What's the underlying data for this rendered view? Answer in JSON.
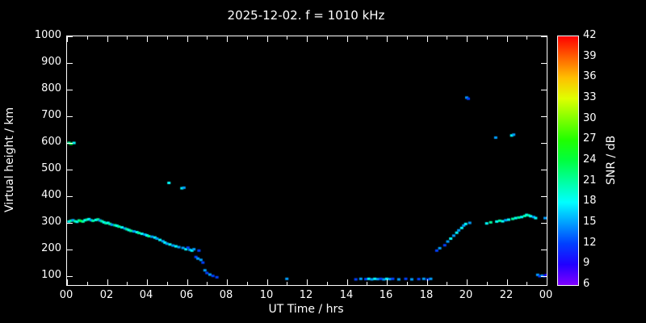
{
  "title": "2025-12-02. f = 1010 kHz",
  "chart_data": {
    "type": "scatter",
    "title": "2025-12-02. f = 1010 kHz",
    "xlabel": "UT Time / hrs",
    "ylabel": "Virtual height / km",
    "xlim": [
      0,
      24
    ],
    "ylim": [
      66.7,
      1000
    ],
    "grid": false,
    "background_color": "#000000",
    "axis_color": "#ffffff",
    "x_ticks": {
      "values": [
        0,
        2,
        4,
        6,
        8,
        10,
        12,
        14,
        16,
        18,
        20,
        22,
        24
      ],
      "labels": [
        "00",
        "02",
        "04",
        "06",
        "08",
        "10",
        "12",
        "14",
        "16",
        "18",
        "20",
        "22",
        "00"
      ]
    },
    "y_ticks": [
      100,
      200,
      300,
      400,
      500,
      600,
      700,
      800,
      900,
      1000
    ],
    "colorbar": {
      "label": "SNR / dB",
      "min": 6,
      "max": 42,
      "ticks": [
        42,
        39,
        36,
        33,
        30,
        27,
        24,
        21,
        18,
        15,
        12,
        9,
        6
      ],
      "scale": "rainbow: violet at 6 dB through blue, cyan, green, yellow, orange to red at 42 dB",
      "color_min": "#8000ff",
      "color_mid": "#00ffff",
      "color_max": "#ff0000"
    },
    "points_format": "[UT_hours, virtual_height_km, SNR_dB]",
    "points": [
      [
        0.1,
        600,
        21
      ],
      [
        0.2,
        597,
        24
      ],
      [
        0.35,
        600,
        18
      ],
      [
        0.1,
        305,
        18
      ],
      [
        0.2,
        308,
        21
      ],
      [
        0.3,
        310,
        15
      ],
      [
        0.4,
        306,
        21
      ],
      [
        0.5,
        304,
        18
      ],
      [
        0.6,
        309,
        21
      ],
      [
        0.7,
        307,
        24
      ],
      [
        0.8,
        305,
        21
      ],
      [
        0.9,
        310,
        18
      ],
      [
        1.0,
        312,
        21
      ],
      [
        1.1,
        314,
        18
      ],
      [
        1.2,
        310,
        15
      ],
      [
        1.3,
        308,
        21
      ],
      [
        1.45,
        311,
        18
      ],
      [
        1.55,
        313,
        21
      ],
      [
        1.65,
        309,
        15
      ],
      [
        1.75,
        306,
        21
      ],
      [
        1.85,
        302,
        18
      ],
      [
        1.95,
        299,
        21
      ],
      [
        2.05,
        300,
        18
      ],
      [
        2.15,
        296,
        21
      ],
      [
        2.25,
        293,
        15
      ],
      [
        2.4,
        291,
        21
      ],
      [
        2.5,
        289,
        18
      ],
      [
        2.6,
        286,
        21
      ],
      [
        2.75,
        283,
        18
      ],
      [
        2.9,
        279,
        15
      ],
      [
        3.0,
        276,
        21
      ],
      [
        3.1,
        273,
        18
      ],
      [
        3.2,
        270,
        21
      ],
      [
        3.35,
        268,
        15
      ],
      [
        3.5,
        265,
        18
      ],
      [
        3.6,
        262,
        21
      ],
      [
        3.75,
        259,
        18
      ],
      [
        3.9,
        256,
        15
      ],
      [
        4.0,
        253,
        18
      ],
      [
        4.1,
        250,
        21
      ],
      [
        4.25,
        248,
        15
      ],
      [
        4.4,
        245,
        18
      ],
      [
        4.5,
        241,
        15
      ],
      [
        4.65,
        236,
        18
      ],
      [
        4.8,
        231,
        15
      ],
      [
        4.9,
        226,
        18
      ],
      [
        5.0,
        222,
        15
      ],
      [
        5.1,
        450,
        18
      ],
      [
        5.15,
        219,
        18
      ],
      [
        5.3,
        215,
        15
      ],
      [
        5.45,
        212,
        18
      ],
      [
        5.6,
        209,
        15
      ],
      [
        5.75,
        430,
        18
      ],
      [
        5.85,
        432,
        15
      ],
      [
        5.8,
        206,
        15
      ],
      [
        5.95,
        201,
        18
      ],
      [
        6.05,
        207,
        12
      ],
      [
        6.15,
        199,
        15
      ],
      [
        6.25,
        196,
        18
      ],
      [
        6.35,
        201,
        15
      ],
      [
        6.45,
        172,
        12
      ],
      [
        6.55,
        166,
        15
      ],
      [
        6.6,
        196,
        12
      ],
      [
        6.7,
        161,
        15
      ],
      [
        6.8,
        151,
        12
      ],
      [
        6.9,
        122,
        15
      ],
      [
        7.0,
        112,
        12
      ],
      [
        7.15,
        106,
        15
      ],
      [
        7.3,
        101,
        12
      ],
      [
        7.5,
        96,
        12
      ],
      [
        11.0,
        90,
        15
      ],
      [
        14.45,
        88,
        12
      ],
      [
        14.7,
        90,
        15
      ],
      [
        14.95,
        89,
        12
      ],
      [
        15.1,
        90,
        18
      ],
      [
        15.25,
        88,
        15
      ],
      [
        15.4,
        90,
        18
      ],
      [
        15.55,
        89,
        15
      ],
      [
        15.7,
        90,
        12
      ],
      [
        15.85,
        88,
        15
      ],
      [
        16.0,
        90,
        18
      ],
      [
        16.15,
        89,
        15
      ],
      [
        16.3,
        90,
        12
      ],
      [
        16.6,
        88,
        15
      ],
      [
        16.95,
        90,
        12
      ],
      [
        17.25,
        88,
        15
      ],
      [
        17.6,
        89,
        12
      ],
      [
        17.85,
        90,
        15
      ],
      [
        18.05,
        88,
        12
      ],
      [
        18.2,
        90,
        15
      ],
      [
        18.5,
        196,
        12
      ],
      [
        18.65,
        205,
        15
      ],
      [
        18.9,
        216,
        12
      ],
      [
        19.05,
        230,
        15
      ],
      [
        19.2,
        241,
        18
      ],
      [
        19.35,
        252,
        15
      ],
      [
        19.5,
        263,
        18
      ],
      [
        19.6,
        272,
        15
      ],
      [
        19.75,
        281,
        18
      ],
      [
        19.85,
        290,
        15
      ],
      [
        19.95,
        296,
        18
      ],
      [
        20.0,
        770,
        15
      ],
      [
        20.08,
        766,
        12
      ],
      [
        20.15,
        300,
        15
      ],
      [
        21.0,
        298,
        18
      ],
      [
        21.2,
        302,
        21
      ],
      [
        21.45,
        620,
        15
      ],
      [
        21.5,
        305,
        18
      ],
      [
        21.65,
        308,
        21
      ],
      [
        21.8,
        306,
        18
      ],
      [
        21.95,
        310,
        15
      ],
      [
        22.1,
        312,
        18
      ],
      [
        22.25,
        628,
        18
      ],
      [
        22.35,
        631,
        15
      ],
      [
        22.3,
        315,
        21
      ],
      [
        22.45,
        318,
        18
      ],
      [
        22.6,
        320,
        21
      ],
      [
        22.75,
        322,
        18
      ],
      [
        22.9,
        326,
        21
      ],
      [
        23.0,
        330,
        18
      ],
      [
        23.1,
        328,
        21
      ],
      [
        23.2,
        325,
        18
      ],
      [
        23.35,
        322,
        15
      ],
      [
        23.45,
        318,
        18
      ],
      [
        23.55,
        105,
        15
      ],
      [
        23.65,
        100,
        12
      ],
      [
        23.78,
        102,
        15
      ],
      [
        23.88,
        100,
        12
      ],
      [
        23.92,
        318,
        15
      ],
      [
        23.97,
        104,
        9
      ]
    ]
  }
}
